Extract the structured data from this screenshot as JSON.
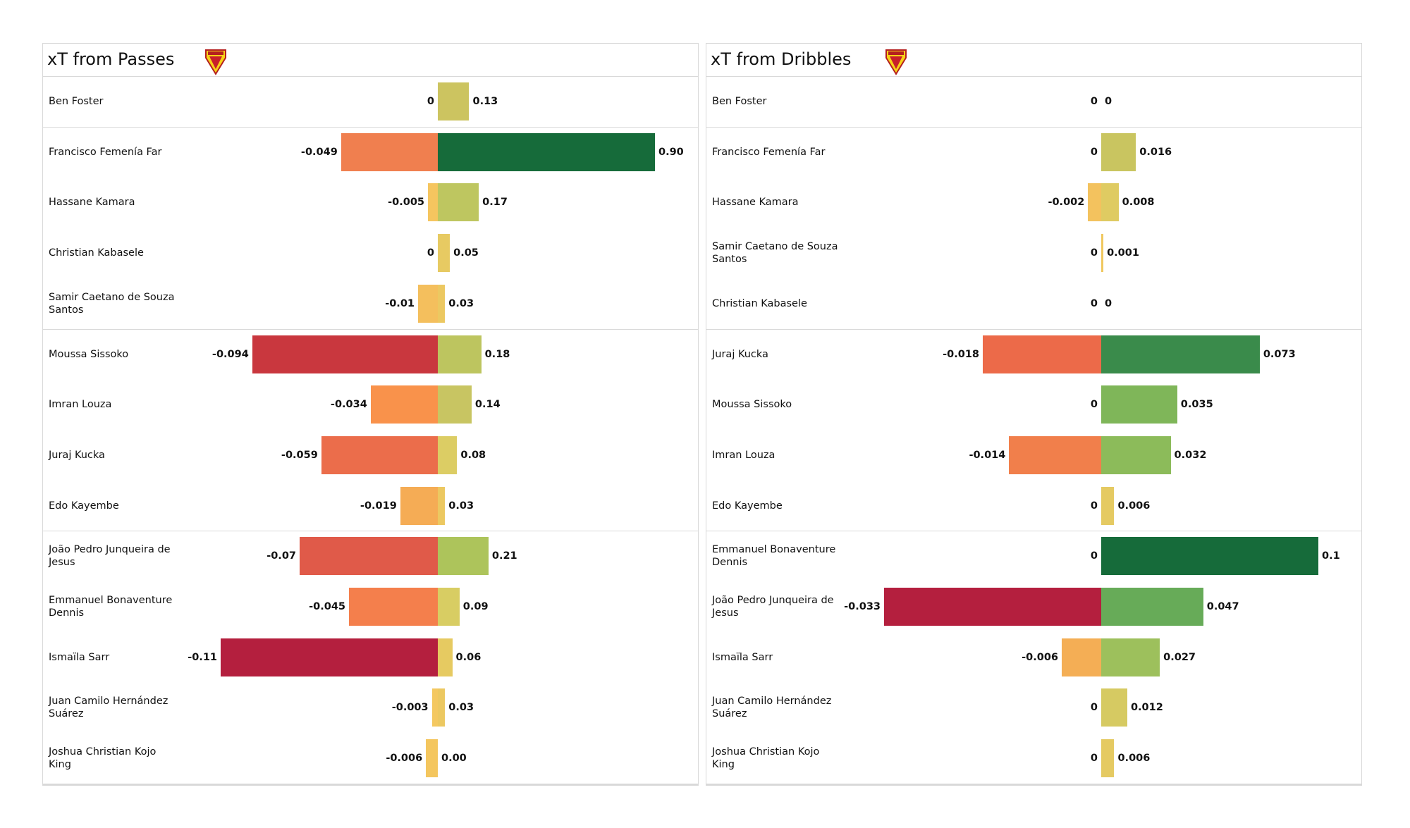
{
  "chart_data": [
    {
      "type": "diverging-bar",
      "title": "xT from Passes",
      "categories": [
        "Ben Foster",
        "Francisco Femenía Far",
        "Hassane Kamara",
        "Christian Kabasele",
        "Samir Caetano de Souza Santos",
        "Moussa Sissoko",
        "Imran Louza",
        "Juraj Kucka",
        "Edo Kayembe",
        "João Pedro Junqueira de Jesus",
        "Emmanuel Bonaventure Dennis",
        "Ismaïla Sarr",
        "Juan Camilo Hernández Suárez",
        "Joshua Christian Kojo King"
      ],
      "series": [
        {
          "values": [
            0,
            -0.049,
            -0.005,
            0,
            -0.01,
            -0.094,
            -0.034,
            -0.059,
            -0.019,
            -0.07,
            -0.045,
            -0.11,
            -0.003,
            -0.006
          ],
          "colors": [
            "#f4c860",
            "#f07f4f",
            "#f5c55f",
            "#f4c860",
            "#f4bf5d",
            "#c9373e",
            "#f9924b",
            "#eb6d4b",
            "#f5ac55",
            "#e05a49",
            "#f47f4c",
            "#b41f3e",
            "#f4c860",
            "#f4c65e"
          ]
        },
        {
          "values": [
            0.13,
            0.9,
            0.17,
            0.05,
            0.03,
            0.18,
            0.14,
            0.08,
            0.03,
            0.21,
            0.09,
            0.06,
            0.03,
            0
          ],
          "value_labels": [
            "0.13",
            "0.90",
            "0.17",
            "0.05",
            "0.03",
            "0.18",
            "0.14",
            "0.08",
            "0.03",
            "0.21",
            "0.09",
            "0.06",
            "0.03",
            "0.00"
          ],
          "colors": [
            "#ccc460",
            "#166b3a",
            "#bec660",
            "#e7ca62",
            "#ecc861",
            "#bdc55f",
            "#c8c562",
            "#dccd64",
            "#ecc861",
            "#adc45b",
            "#d8cd63",
            "#e6ca61",
            "#ecc861",
            "#f2c75f"
          ]
        }
      ]
    },
    {
      "type": "diverging-bar",
      "title": "xT from Dribbles",
      "categories": [
        "Ben Foster",
        "Francisco Femenía Far",
        "Hassane Kamara",
        "Samir Caetano de Souza Santos",
        "Christian Kabasele",
        "Juraj Kucka",
        "Moussa Sissoko",
        "Imran Louza",
        "Edo Kayembe",
        "Emmanuel Bonaventure Dennis",
        "João Pedro Junqueira de Jesus",
        "Ismaïla Sarr",
        "Juan Camilo Hernández Suárez",
        "Joshua Christian Kojo King"
      ],
      "series": [
        {
          "values": [
            0,
            0,
            -0.002,
            0,
            0,
            -0.018,
            0,
            -0.014,
            0,
            0,
            -0.033,
            -0.006,
            0,
            0
          ],
          "colors": [
            "#f0c860",
            "#f0c860",
            "#f3c25e",
            "#f0c860",
            "#f0c860",
            "#ec6a49",
            "#f0c860",
            "#f17f4b",
            "#f0c860",
            "#f0c860",
            "#b41f3e",
            "#f4ae55",
            "#f0c860",
            "#f0c860"
          ]
        },
        {
          "values": [
            0,
            0.016,
            0.008,
            0.001,
            0,
            0.073,
            0.035,
            0.032,
            0.006,
            0.1,
            0.047,
            0.027,
            0.012,
            0.006
          ],
          "colors": [
            "#f0c860",
            "#c9c560",
            "#dfcb62",
            "#f0c860",
            "#f0c860",
            "#3a8b4b",
            "#7fb659",
            "#8cbb5a",
            "#e5ca62",
            "#166b3a",
            "#67ab58",
            "#9dc05c",
            "#d6ca62",
            "#e5ca62"
          ]
        }
      ]
    }
  ]
}
